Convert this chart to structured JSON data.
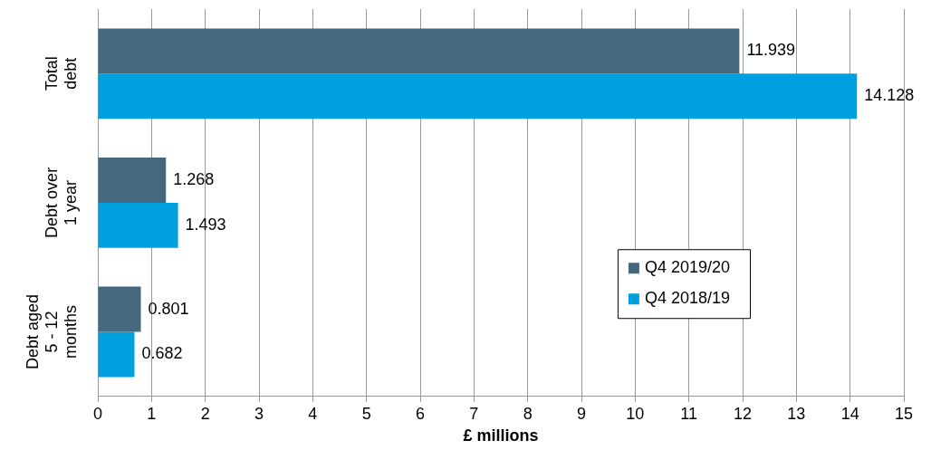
{
  "chart_data": {
    "type": "bar",
    "orientation": "horizontal",
    "xlabel": "£ millions",
    "categories": [
      "Total debt",
      "Debt over 1 year",
      "Debt aged 5 - 12 months"
    ],
    "series": [
      {
        "name": "Q4 2019/20",
        "color": "#44687d",
        "values": [
          11.939,
          1.268,
          0.801
        ]
      },
      {
        "name": "Q4 2018/19",
        "color": "#00a0e0",
        "values": [
          14.128,
          1.493,
          0.682
        ]
      }
    ],
    "xlim": [
      0,
      15
    ],
    "xticks": [
      0,
      1,
      2,
      3,
      4,
      5,
      6,
      7,
      8,
      9,
      10,
      11,
      12,
      13,
      14,
      15
    ],
    "grid": "x",
    "legend": "right",
    "data_labels": true
  }
}
